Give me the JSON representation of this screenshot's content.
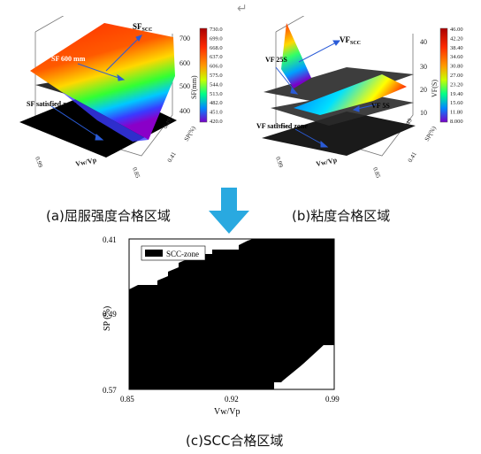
{
  "return_mark": "↵",
  "panel_a": {
    "caption": "(a)屈服强度合格区域",
    "label_scc": "SF",
    "label_scc_sub": "SCC",
    "label_600": "SF 600 mm",
    "label_zone": "SF satisfied zone",
    "z_axis_label": "SF(mm)",
    "z_ticks": [
      "700",
      "600",
      "500",
      "400"
    ],
    "x_axis_label": "Vw/Vp",
    "x_ticks": [
      "0.99",
      "0.85"
    ],
    "y_axis_label": "SP(%)",
    "y_ticks": [
      "0.49",
      "0.41"
    ],
    "colorbar": [
      "730.0",
      "699.0",
      "668.0",
      "637.0",
      "606.0",
      "575.0",
      "544.0",
      "513.0",
      "482.0",
      "451.0",
      "420.0"
    ]
  },
  "panel_b": {
    "caption": "(b)粘度合格区域",
    "label_scc": "VF",
    "label_scc_sub": "SCC",
    "label_25": "VF 25S",
    "label_5": "VF 5S",
    "label_zone": "VF satisfied zone",
    "z_axis_label": "VF(S)",
    "z_ticks": [
      "40",
      "30",
      "20",
      "10"
    ],
    "x_axis_label": "Vw/Vp",
    "x_ticks": [
      "0.99",
      "0.85"
    ],
    "y_axis_label": "SP(%)",
    "y_ticks": [
      "0.49",
      "0.41"
    ],
    "colorbar": [
      "46.00",
      "42.20",
      "38.40",
      "34.60",
      "30.80",
      "27.00",
      "23.20",
      "19.40",
      "15.60",
      "11.80",
      "8.000"
    ]
  },
  "panel_c": {
    "caption": "(c)SCC合格区域",
    "legend": "SCC-zone",
    "x_axis_label": "Vw/Vp",
    "y_axis_label": "SP (%)",
    "x_ticks": [
      "0.85",
      "0.92",
      "0.99"
    ],
    "y_ticks": [
      "0.41",
      "0.49",
      "0.57"
    ]
  },
  "colors": {
    "arrow": "#29a9e0",
    "region": "#000000"
  }
}
